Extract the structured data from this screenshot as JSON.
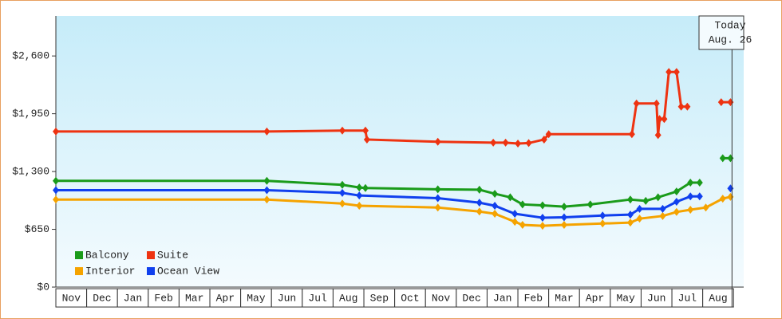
{
  "chart_data": {
    "type": "line",
    "categories": [
      "Nov",
      "Dec",
      "Jan",
      "Feb",
      "Mar",
      "Apr",
      "May",
      "Jun",
      "Jul",
      "Aug",
      "Sep",
      "Oct",
      "Nov",
      "Dec",
      "Jan",
      "Feb",
      "Mar",
      "Apr",
      "May",
      "Jun",
      "Jul",
      "Aug"
    ],
    "xlim": [
      0,
      22.33
    ],
    "ylim": [
      0,
      3050
    ],
    "yticks": [
      {
        "value": 0,
        "label": "$0"
      },
      {
        "value": 650,
        "label": "$650"
      },
      {
        "value": 1300,
        "label": "$1,300"
      },
      {
        "value": 1950,
        "label": "$1,950"
      },
      {
        "value": 2600,
        "label": "$2,600"
      }
    ],
    "grid": false,
    "legend": "lower left",
    "series": [
      {
        "name": "Balcony",
        "color": "#1a9b1a",
        "x": [
          0,
          6.85,
          9.3,
          9.85,
          10.05,
          12.4,
          13.75,
          14.25,
          14.75,
          15.15,
          15.8,
          16.5,
          17.35,
          18.65,
          19.15,
          19.55,
          20.15,
          20.6,
          20.9,
          21.2,
          21.65,
          21.9
        ],
        "values": [
          1195,
          1195,
          1150,
          1120,
          1115,
          1100,
          1095,
          1050,
          1010,
          930,
          920,
          905,
          930,
          985,
          970,
          1010,
          1075,
          1175,
          1175,
          null,
          1450,
          1450
        ]
      },
      {
        "name": "Suite",
        "color": "#ee3311",
        "x": [
          0,
          6.85,
          9.3,
          10.05,
          10.1,
          12.4,
          14.2,
          14.6,
          15.0,
          15.35,
          15.85,
          16.0,
          18.7,
          18.85,
          19.5,
          19.55,
          19.6,
          19.75,
          19.9,
          20.15,
          20.3,
          20.5,
          21.0,
          21.6,
          21.9
        ],
        "values": [
          1750,
          1750,
          1760,
          1760,
          1660,
          1635,
          1625,
          1625,
          1615,
          1620,
          1660,
          1720,
          1720,
          2065,
          2065,
          1710,
          1890,
          1890,
          2420,
          2420,
          2030,
          2030,
          null,
          2080,
          2080
        ]
      },
      {
        "name": "Interior",
        "color": "#f5a300",
        "x": [
          0,
          6.85,
          9.3,
          9.85,
          12.4,
          13.75,
          14.25,
          14.9,
          15.15,
          15.8,
          16.5,
          17.75,
          18.65,
          18.95,
          19.7,
          20.15,
          20.6,
          21.1,
          21.65,
          21.9
        ],
        "values": [
          985,
          985,
          940,
          915,
          895,
          850,
          825,
          735,
          700,
          690,
          700,
          715,
          725,
          770,
          800,
          845,
          870,
          895,
          995,
          1015
        ]
      },
      {
        "name": "Ocean View",
        "color": "#1040ee",
        "x": [
          0,
          6.85,
          9.3,
          9.85,
          12.4,
          13.75,
          14.25,
          14.9,
          15.8,
          16.5,
          17.75,
          18.65,
          18.95,
          19.7,
          20.15,
          20.6,
          20.9,
          21.3,
          21.9
        ],
        "values": [
          1090,
          1090,
          1060,
          1030,
          1000,
          950,
          915,
          825,
          780,
          785,
          805,
          815,
          880,
          880,
          960,
          1020,
          1020,
          null,
          1110
        ]
      }
    ],
    "annotation": {
      "text": [
        "Today",
        "Aug. 26"
      ],
      "x": 21.95
    }
  }
}
